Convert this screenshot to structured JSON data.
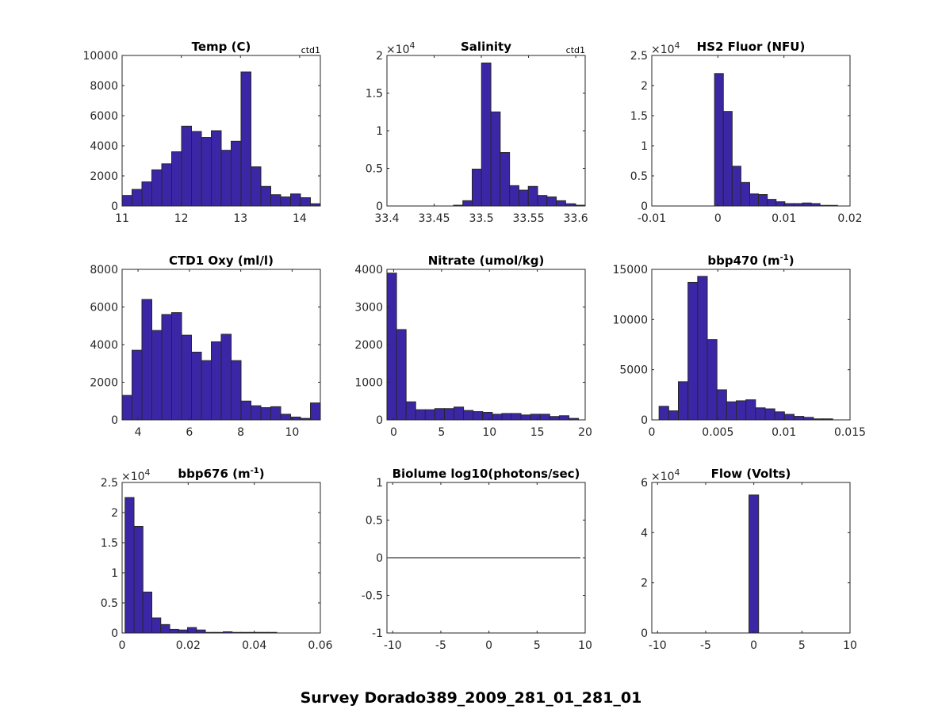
{
  "figure": {
    "suptitle": "Survey Dorado389_2009_281_01_281_01",
    "bar_color": "#3b27a6",
    "edge_color": "#262626"
  },
  "chart_data": [
    {
      "type": "bar",
      "title": "Temp (C)",
      "title_sup": "",
      "title_suffix": "",
      "corner_label": "ctd1",
      "exponent": "",
      "xlim": [
        11,
        14.35
      ],
      "ylim": [
        0,
        10000
      ],
      "xticks": [
        11,
        12,
        13,
        14
      ],
      "xtick_labels": [
        "11",
        "12",
        "13",
        "14"
      ],
      "yticks": [
        0,
        2000,
        4000,
        6000,
        8000,
        10000
      ],
      "ytick_labels": [
        "0",
        "2000",
        "4000",
        "6000",
        "8000",
        "10000"
      ],
      "bin_start": 11.0,
      "bin_width": 0.1675,
      "values": [
        700,
        1100,
        1600,
        2400,
        2800,
        3600,
        5300,
        4950,
        4550,
        5000,
        3700,
        4300,
        8900,
        2600,
        1300,
        750,
        600,
        800,
        550,
        150
      ]
    },
    {
      "type": "bar",
      "title": "Salinity",
      "title_sup": "",
      "title_suffix": "",
      "corner_label": "ctd1",
      "exponent": "4",
      "xlim": [
        33.4,
        33.61
      ],
      "ylim": [
        0,
        2
      ],
      "xticks": [
        33.4,
        33.45,
        33.5,
        33.55,
        33.6
      ],
      "xtick_labels": [
        "33.4",
        "33.45",
        "33.5",
        "33.55",
        "33.6"
      ],
      "yticks": [
        0,
        0.5,
        1,
        1.5,
        2
      ],
      "ytick_labels": [
        "0",
        "0.5",
        "1",
        "1.5",
        "2"
      ],
      "bin_start": 33.4705,
      "bin_width": 0.0099,
      "values": [
        0.01,
        0.07,
        0.49,
        1.9,
        1.25,
        0.71,
        0.27,
        0.21,
        0.26,
        0.14,
        0.12,
        0.07,
        0.03,
        0.01
      ]
    },
    {
      "type": "bar",
      "title": "HS2 Fluor (NFU)",
      "title_sup": "",
      "title_suffix": "",
      "corner_label": "",
      "exponent": "4",
      "xlim": [
        -0.01,
        0.02
      ],
      "ylim": [
        0,
        2.5
      ],
      "xticks": [
        -0.01,
        0,
        0.01,
        0.02
      ],
      "xtick_labels": [
        "-0.01",
        "0",
        "0.01",
        "0.02"
      ],
      "yticks": [
        0,
        0.5,
        1,
        1.5,
        2,
        2.5
      ],
      "ytick_labels": [
        "0",
        "0.5",
        "1",
        "1.5",
        "2",
        "2.5"
      ],
      "bin_start": -0.0005,
      "bin_width": 0.00133,
      "values": [
        2.2,
        1.57,
        0.66,
        0.39,
        0.2,
        0.19,
        0.11,
        0.07,
        0.04,
        0.04,
        0.05,
        0.04,
        0.01,
        0.01
      ]
    },
    {
      "type": "bar",
      "title": "CTD1 Oxy (ml/l)",
      "title_sup": "",
      "title_suffix": "",
      "corner_label": "",
      "exponent": "",
      "xlim": [
        3.38,
        11.1
      ],
      "ylim": [
        0,
        8000
      ],
      "xticks": [
        4,
        6,
        8,
        10
      ],
      "xtick_labels": [
        "4",
        "6",
        "8",
        "10"
      ],
      "yticks": [
        0,
        2000,
        4000,
        6000,
        8000
      ],
      "ytick_labels": [
        "0",
        "2000",
        "4000",
        "6000",
        "8000"
      ],
      "bin_start": 3.38,
      "bin_width": 0.386,
      "values": [
        1300,
        3700,
        6400,
        4750,
        5600,
        5700,
        4500,
        3600,
        3150,
        4150,
        4550,
        3150,
        1000,
        750,
        650,
        700,
        300,
        150,
        80,
        900
      ]
    },
    {
      "type": "bar",
      "title": "Nitrate (umol/kg)",
      "title_sup": "",
      "title_suffix": "",
      "corner_label": "",
      "exponent": "",
      "xlim": [
        -0.7,
        20
      ],
      "ylim": [
        0,
        4000
      ],
      "xticks": [
        0,
        5,
        10,
        15,
        20
      ],
      "xtick_labels": [
        "0",
        "5",
        "10",
        "15",
        "20"
      ],
      "yticks": [
        0,
        1000,
        2000,
        3000,
        4000
      ],
      "ytick_labels": [
        "0",
        "1000",
        "2000",
        "3000",
        "4000"
      ],
      "bin_start": -0.7,
      "bin_width": 1.0,
      "values": [
        3900,
        2400,
        480,
        270,
        270,
        300,
        300,
        340,
        250,
        220,
        200,
        150,
        170,
        170,
        130,
        150,
        150,
        90,
        110,
        40
      ]
    },
    {
      "type": "bar",
      "title": "bbp470 (m",
      "title_sup": "-1",
      "title_suffix": ")",
      "corner_label": "",
      "exponent": "",
      "xlim": [
        0,
        0.015
      ],
      "ylim": [
        0,
        15000
      ],
      "xticks": [
        0,
        0.005,
        0.01,
        0.015
      ],
      "xtick_labels": [
        "0",
        "0.005",
        "0.01",
        "0.015"
      ],
      "yticks": [
        0,
        5000,
        10000,
        15000
      ],
      "ytick_labels": [
        "0",
        "5000",
        "10000",
        "15000"
      ],
      "bin_start": 0.00055,
      "bin_width": 0.00073,
      "values": [
        1350,
        900,
        3800,
        13700,
        14300,
        8000,
        3000,
        1800,
        1900,
        2000,
        1200,
        1100,
        800,
        550,
        350,
        250,
        100,
        100
      ]
    },
    {
      "type": "bar",
      "title": "bbp676 (m",
      "title_sup": "-1",
      "title_suffix": ")",
      "corner_label": "",
      "exponent": "4",
      "xlim": [
        0,
        0.06
      ],
      "ylim": [
        0,
        2.5
      ],
      "xticks": [
        0,
        0.02,
        0.04,
        0.06
      ],
      "xtick_labels": [
        "0",
        "0.02",
        "0.04",
        "0.06"
      ],
      "yticks": [
        0,
        0.5,
        1,
        1.5,
        2,
        2.5
      ],
      "ytick_labels": [
        "0",
        "0.5",
        "1",
        "1.5",
        "2",
        "2.5"
      ],
      "bin_start": 0.0009,
      "bin_width": 0.0027,
      "values": [
        2.25,
        1.77,
        0.68,
        0.25,
        0.14,
        0.06,
        0.05,
        0.09,
        0.05,
        0.01,
        0.01,
        0.02,
        0.01,
        0.01,
        0.01,
        0.01,
        0.01
      ]
    },
    {
      "type": "line",
      "title": "Biolume log10(photons/sec)",
      "title_sup": "",
      "title_suffix": "",
      "corner_label": "",
      "exponent": "",
      "xlim": [
        -10.6,
        10
      ],
      "ylim": [
        -1,
        1
      ],
      "xticks": [
        -10,
        -5,
        0,
        5,
        10
      ],
      "xtick_labels": [
        "-10",
        "-5",
        "0",
        "5",
        "10"
      ],
      "yticks": [
        -1,
        -0.5,
        0,
        0.5,
        1
      ],
      "ytick_labels": [
        "-1",
        "-0.5",
        "0",
        "0.5",
        "1"
      ],
      "line": {
        "x": [
          -10.6,
          9.5
        ],
        "y": [
          0,
          0
        ]
      }
    },
    {
      "type": "bar",
      "title": "Flow (Volts)",
      "title_sup": "",
      "title_suffix": "",
      "corner_label": "",
      "exponent": "4",
      "xlim": [
        -10.6,
        10
      ],
      "ylim": [
        0,
        6
      ],
      "xticks": [
        -10,
        -5,
        0,
        5,
        10
      ],
      "xtick_labels": [
        "-10",
        "-5",
        "0",
        "5",
        "10"
      ],
      "yticks": [
        0,
        2,
        4,
        6
      ],
      "ytick_labels": [
        "0",
        "2",
        "4",
        "6"
      ],
      "bin_start": -0.5,
      "bin_width": 1.0,
      "values": [
        5.5
      ]
    }
  ]
}
